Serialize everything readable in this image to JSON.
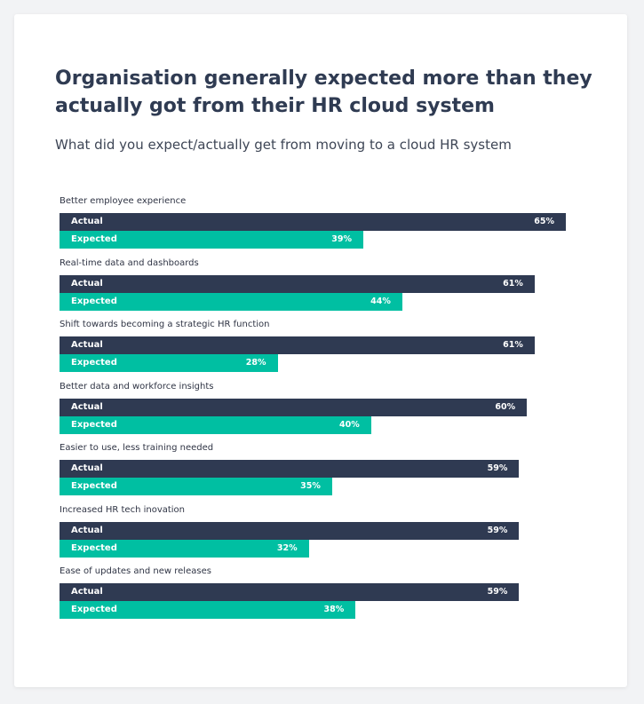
{
  "header": {
    "title": "Organisation generally expected more than they actually got from their HR cloud system",
    "subtitle": "What did you expect/actually get from moving to a cloud HR system"
  },
  "colors": {
    "actual": "#2f3a52",
    "expected": "#00bfa2",
    "title": "#2f3b52"
  },
  "chart_data": {
    "type": "bar",
    "orientation": "horizontal",
    "title": "Organisation generally expected more than they actually got from their HR cloud system",
    "subtitle": "What did you expect/actually get from moving to a cloud HR system",
    "value_suffix": "%",
    "xlim": [
      0,
      65
    ],
    "grid": false,
    "categories": [
      "Better employee experience",
      "Real-time data and dashboards",
      "Shift towards becoming a strategic HR function",
      "Better data and workforce insights",
      "Easier to use, less training needed",
      "Increased HR tech inovation",
      "Ease of updates and new releases"
    ],
    "series": [
      {
        "name": "Actual",
        "values": [
          65,
          61,
          61,
          60,
          59,
          59,
          59
        ]
      },
      {
        "name": "Expected",
        "values": [
          39,
          44,
          28,
          40,
          35,
          32,
          38
        ]
      }
    ],
    "value_labels": {
      "Actual": [
        "65%",
        "61%",
        "61%",
        "60%",
        "59%",
        "59%",
        "59%"
      ],
      "Expected": [
        "39%",
        "44%",
        "28%",
        "40%",
        "35%",
        "32%",
        "38%"
      ]
    }
  }
}
